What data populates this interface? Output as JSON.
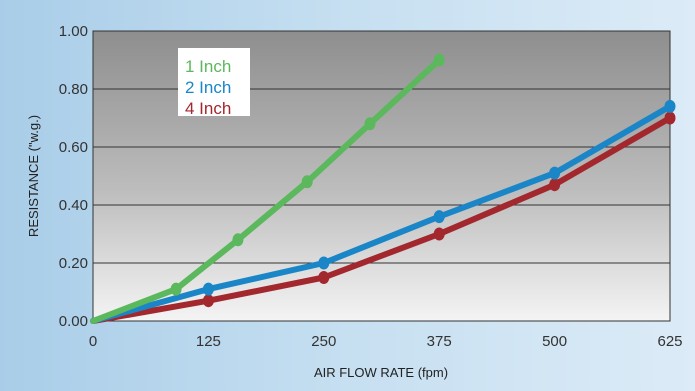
{
  "chart_data": {
    "type": "line",
    "xlabel": "AIR FLOW RATE (fpm)",
    "ylabel": "RESISTANCE (\"w.g.)",
    "x_ticks": [
      "0",
      "125",
      "250",
      "375",
      "500",
      "625"
    ],
    "y_ticks": [
      "0.00",
      "0.20",
      "0.40",
      "0.60",
      "0.80",
      "1.00"
    ],
    "xlim": [
      0,
      625
    ],
    "ylim": [
      0,
      1.0
    ],
    "grid": true,
    "legend_position": "top-left",
    "series": [
      {
        "name": "1 Inch",
        "color": "#5cb85c",
        "x": [
          0,
          90,
          157,
          232,
          300,
          375
        ],
        "y": [
          0.0,
          0.11,
          0.28,
          0.48,
          0.68,
          0.9
        ]
      },
      {
        "name": "2 Inch",
        "color": "#1a86c8",
        "x": [
          0,
          125,
          250,
          375,
          500,
          625
        ],
        "y": [
          0.0,
          0.11,
          0.2,
          0.36,
          0.51,
          0.74
        ]
      },
      {
        "name": "4 Inch",
        "color": "#a3282e",
        "x": [
          0,
          125,
          250,
          375,
          500,
          625
        ],
        "y": [
          0.0,
          0.07,
          0.15,
          0.3,
          0.47,
          0.7
        ]
      }
    ]
  }
}
